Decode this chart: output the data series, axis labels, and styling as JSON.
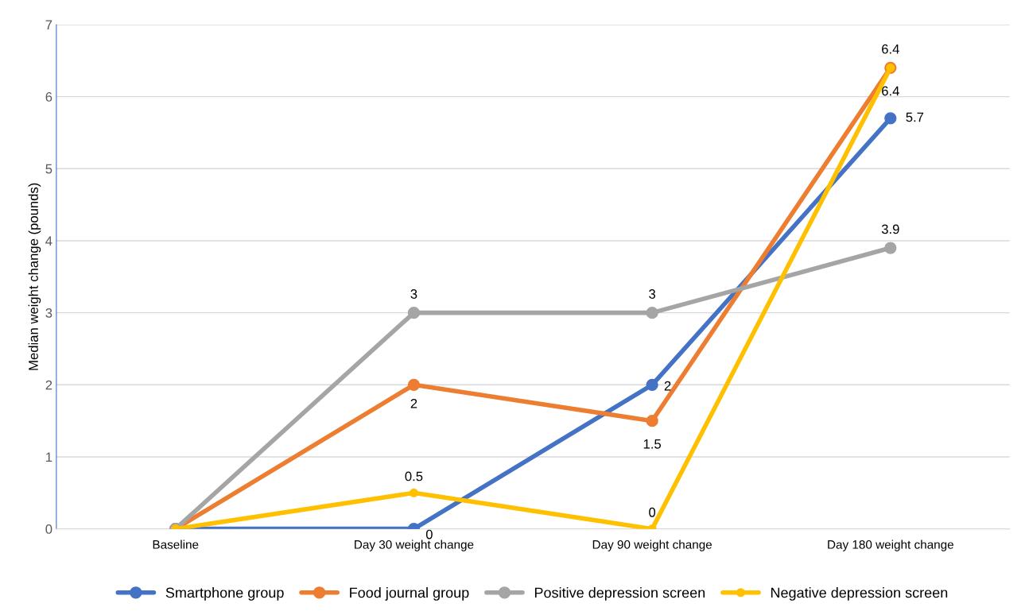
{
  "chart_data": {
    "type": "line",
    "ylabel": "Median weight change (pounds)",
    "categories": [
      "Baseline",
      "Day 30 weight change",
      "Day 90 weight change",
      "Day 180 weight change"
    ],
    "series": [
      {
        "name": "Smartphone group",
        "color": "#4472c4",
        "values": [
          0,
          0,
          2,
          5.7
        ],
        "value_labels": [
          null,
          "0",
          "2",
          "5.7"
        ]
      },
      {
        "name": "Food journal group",
        "color": "#ed7d31",
        "values": [
          0,
          2,
          1.5,
          6.4
        ],
        "value_labels": [
          null,
          "2",
          "1.5",
          "6.4"
        ]
      },
      {
        "name": "Positive depression screen",
        "color": "#a5a5a5",
        "values": [
          0,
          3,
          3,
          3.9
        ],
        "value_labels": [
          null,
          "3",
          "3",
          "3.9"
        ]
      },
      {
        "name": "Negative depression screen",
        "color": "#ffc000",
        "values": [
          0,
          0.5,
          0,
          6.4
        ],
        "value_labels": [
          null,
          "0.5",
          "0",
          "6.4"
        ]
      }
    ],
    "ylim": [
      0,
      7
    ],
    "yticks": [
      0,
      1,
      2,
      3,
      4,
      5,
      6,
      7
    ],
    "grid": "y",
    "legend": "bottom",
    "marker": "circle",
    "line_style": "solid"
  }
}
